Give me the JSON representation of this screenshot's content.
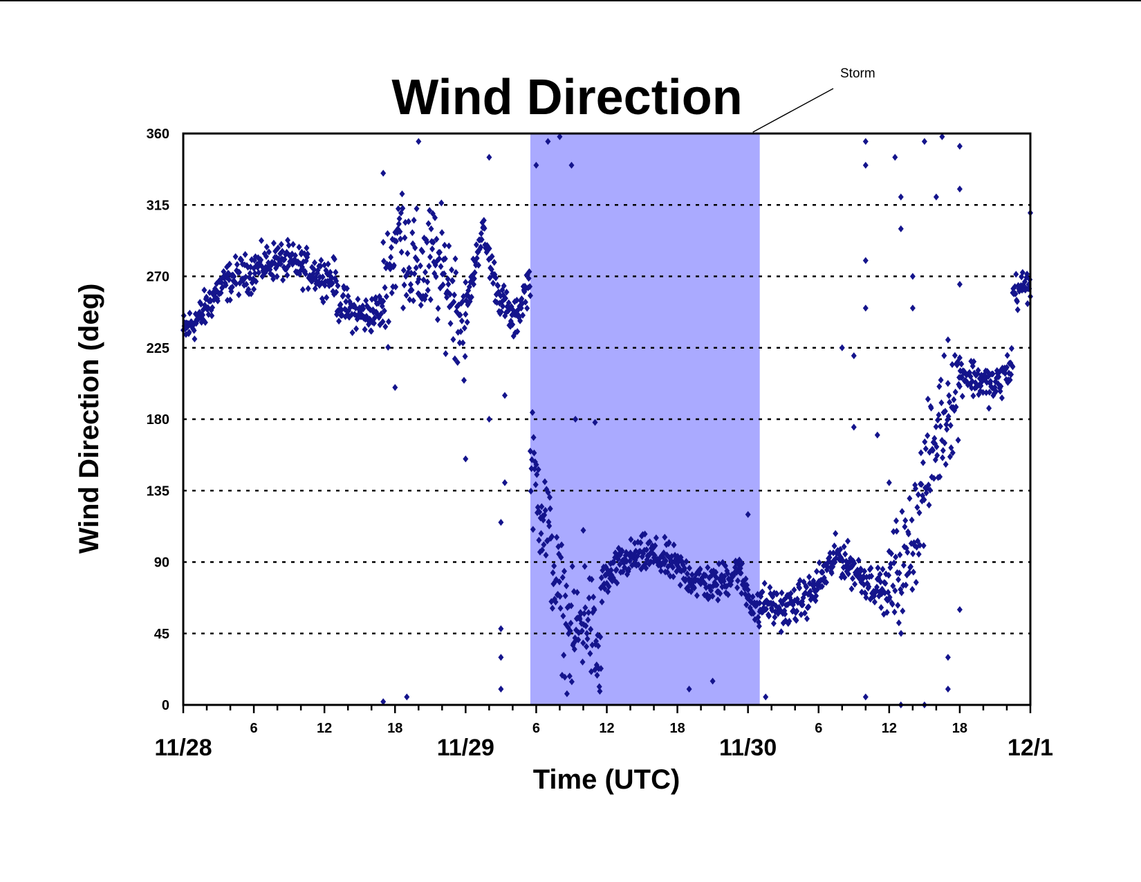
{
  "chart_data": {
    "type": "scatter",
    "title": "Wind Direction",
    "xlabel": "Time (UTC)",
    "ylabel": "Wind Direction (deg)",
    "xlim": [
      "11/28 00:00",
      "12/1 00:00"
    ],
    "ylim": [
      0,
      360
    ],
    "yticks": [
      "0",
      "45",
      "90",
      "135",
      "180",
      "225",
      "270",
      "315",
      "360"
    ],
    "xticks_major": [
      "11/28",
      "11/29",
      "11/30",
      "12/1"
    ],
    "xticks_minor": [
      "6",
      "12",
      "18",
      "6",
      "12",
      "18",
      "6",
      "12",
      "18"
    ],
    "grid": "horizontal dotted",
    "marker": "diamond",
    "marker_color": "#14148c",
    "annotation": {
      "label": "Storm",
      "start": "11/29 05:30",
      "end": "11/30 01:00",
      "color": "#aaaaff"
    },
    "segments": [
      {
        "x_start": "11/28 00:00",
        "x_end": "11/28 06:00",
        "y_trend": [
          235,
          245,
          262,
          270,
          273
        ]
      },
      {
        "x_start": "11/28 06:00",
        "x_end": "11/28 13:00",
        "y_trend": [
          275,
          280,
          278,
          272,
          268
        ]
      },
      {
        "x_start": "11/28 13:00",
        "x_end": "11/28 17:00",
        "y_trend": [
          255,
          248,
          245,
          250
        ]
      },
      {
        "x_start": "11/28 17:00",
        "x_end": "11/29 00:00",
        "y_trend": [
          260,
          300,
          270,
          280,
          265,
          240
        ]
      },
      {
        "x_start": "11/29 00:00",
        "x_end": "11/29 05:30",
        "y_trend": [
          245,
          300,
          260,
          240,
          270
        ]
      },
      {
        "x_start": "11/29 05:30",
        "x_end": "11/29 11:30",
        "y_trend": [
          150,
          120,
          70,
          40,
          60,
          20
        ]
      },
      {
        "x_start": "11/29 11:30",
        "x_end": "11/30 01:00",
        "y_trend": [
          75,
          90,
          95,
          90,
          80,
          75,
          85,
          55
        ]
      },
      {
        "x_start": "11/30 01:00",
        "x_end": "11/30 12:00",
        "y_trend": [
          65,
          60,
          70,
          95,
          80,
          70
        ]
      },
      {
        "x_start": "11/30 12:00",
        "x_end": "11/30 18:00",
        "y_trend": [
          75,
          90,
          140,
          180,
          205
        ]
      },
      {
        "x_start": "11/30 18:00",
        "x_end": "11/30 22:30",
        "y_trend": [
          210,
          205,
          200,
          215
        ]
      },
      {
        "x_start": "11/30 22:30",
        "x_end": "12/1 00:00",
        "y_trend": [
          260,
          265
        ]
      }
    ],
    "scattered_points": [
      [
        "11/28 17:00",
        2
      ],
      [
        "11/28 19:00",
        5
      ],
      [
        "11/28 18:00",
        200
      ],
      [
        "11/29 00:00",
        155
      ],
      [
        "11/29 03:00",
        115
      ],
      [
        "11/29 03:00",
        48
      ],
      [
        "11/29 03:00",
        30
      ],
      [
        "11/29 03:00",
        10
      ],
      [
        "11/29 02:00",
        180
      ],
      [
        "11/29 03:20",
        195
      ],
      [
        "11/29 03:20",
        140
      ],
      [
        "11/29 09:00",
        340
      ],
      [
        "11/29 09:20",
        180
      ],
      [
        "11/29 10:00",
        110
      ],
      [
        "11/29 19:00",
        10
      ],
      [
        "11/29 21:00",
        15
      ],
      [
        "11/30 00:00",
        120
      ],
      [
        "11/30 01:30",
        5
      ],
      [
        "11/30 10:00",
        355
      ],
      [
        "11/30 10:00",
        340
      ],
      [
        "11/30 10:00",
        250
      ],
      [
        "11/30 10:00",
        280
      ],
      [
        "11/30 10:00",
        5
      ],
      [
        "11/30 12:30",
        345
      ],
      [
        "11/30 13:00",
        320
      ],
      [
        "11/30 13:00",
        300
      ],
      [
        "11/30 14:00",
        270
      ],
      [
        "11/30 14:00",
        250
      ],
      [
        "11/30 15:00",
        355
      ],
      [
        "11/30 16:00",
        320
      ],
      [
        "11/30 16:30",
        358
      ],
      [
        "11/30 18:00",
        352
      ],
      [
        "11/30 18:00",
        325
      ],
      [
        "11/30 18:00",
        265
      ],
      [
        "11/30 17:00",
        230
      ],
      [
        "11/30 15:00",
        0
      ],
      [
        "11/30 13:00",
        0
      ],
      [
        "11/30 17:00",
        30
      ],
      [
        "11/30 17:00",
        10
      ],
      [
        "11/30 18:00",
        60
      ],
      [
        "11/30 09:00",
        175
      ],
      [
        "11/30 11:00",
        170
      ],
      [
        "11/30 12:00",
        140
      ],
      [
        "11/30 08:00",
        225
      ],
      [
        "11/30 09:00",
        220
      ],
      [
        "12/1 00:00",
        310
      ],
      [
        "11/29 07:00",
        355
      ],
      [
        "11/29 08:00",
        358
      ],
      [
        "11/29 06:00",
        340
      ],
      [
        "11/28 20:00",
        355
      ],
      [
        "11/28 17:00",
        335
      ],
      [
        "11/29 02:00",
        345
      ],
      [
        "11/29 11:00",
        178
      ]
    ]
  }
}
